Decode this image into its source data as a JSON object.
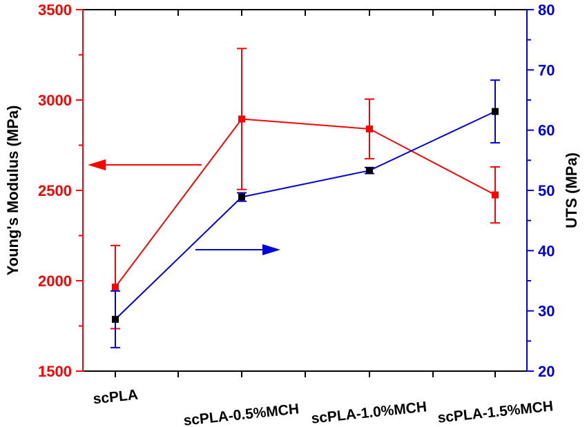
{
  "chart_data": {
    "type": "line",
    "title": "",
    "xlabel": "",
    "categories": [
      "scPLA",
      "scPLA-0.5%MCH",
      "scPLA-1.0%MCH",
      "scPLA-1.5%MCH"
    ],
    "y_left": {
      "label": "Young's Modulus (MPa)",
      "range": [
        1500,
        3500
      ],
      "ticks": [
        1500,
        2000,
        2500,
        3000,
        3500
      ],
      "color": "#ff0000"
    },
    "y_right": {
      "label": "UTS (MPa)",
      "range": [
        20,
        80
      ],
      "ticks": [
        20,
        30,
        40,
        50,
        60,
        70,
        80
      ],
      "color": "#0000dd"
    },
    "series": [
      {
        "name": "Young's Modulus",
        "axis": "left",
        "color": "#ff0000",
        "marker": "square",
        "marker_color": "#ff0000",
        "values": [
          1965,
          2895,
          2840,
          2475
        ],
        "errors": [
          230,
          390,
          165,
          155
        ]
      },
      {
        "name": "UTS",
        "axis": "right",
        "color": "#0000dd",
        "marker": "square",
        "marker_color": "#000000",
        "values": [
          28.6,
          48.9,
          53.3,
          63.1
        ],
        "errors": [
          4.7,
          0.7,
          0.5,
          5.2
        ]
      }
    ],
    "annotations": [
      {
        "type": "arrow",
        "direction": "left",
        "color": "#ff0000",
        "meaning": "red series reads left axis"
      },
      {
        "type": "arrow",
        "direction": "right",
        "color": "#0000dd",
        "meaning": "blue series reads right axis"
      }
    ],
    "grid": false,
    "legend": "none"
  }
}
